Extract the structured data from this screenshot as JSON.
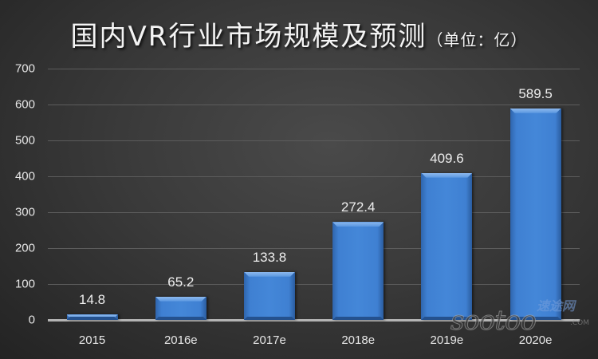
{
  "title": {
    "main": "国内VR行业市场规模及预测",
    "sub": "（单位：亿）"
  },
  "watermark": {
    "cn": "速途网",
    "en": "sootoo",
    "com": ".COM"
  },
  "colors": {
    "bar": "#4487d8",
    "background": "#3a3a3a",
    "text": "#e6e6e6",
    "grid": "#5c5c5c"
  },
  "chart_data": {
    "type": "bar",
    "title": "国内VR行业市场规模及预测（单位：亿）",
    "xlabel": "",
    "ylabel": "",
    "categories": [
      "2015",
      "2016e",
      "2017e",
      "2018e",
      "2019e",
      "2020e"
    ],
    "values": [
      14.8,
      65.2,
      133.8,
      272.4,
      409.6,
      589.5
    ],
    "value_labels": [
      "14.8",
      "65.2",
      "133.8",
      "272.4",
      "409.6",
      "589.5"
    ],
    "ylim": [
      0,
      700
    ],
    "yticks": [
      "0",
      "100",
      "200",
      "300",
      "400",
      "500",
      "600",
      "700"
    ],
    "grid": true,
    "legend": "none"
  }
}
